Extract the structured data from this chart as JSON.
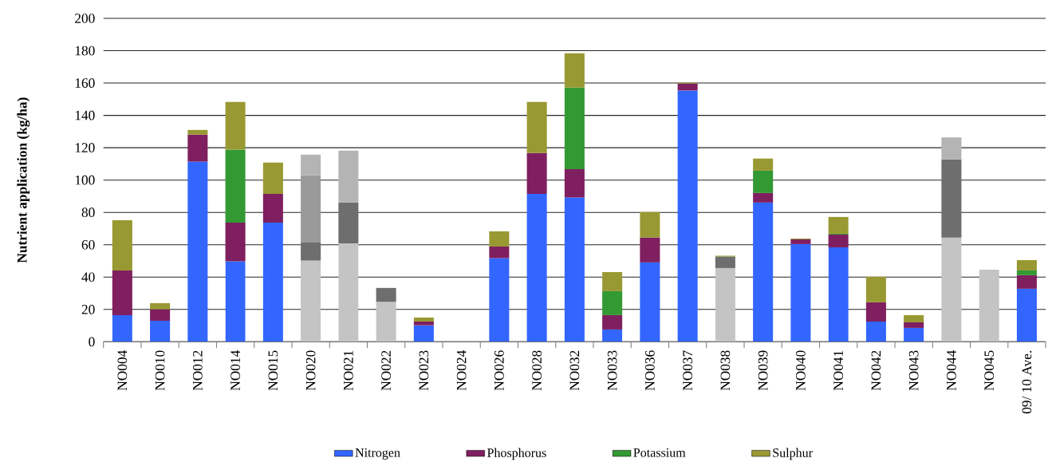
{
  "chart_data": {
    "type": "bar",
    "stacked": true,
    "ylabel": "Nutrient application (kg/ha)",
    "categories": [
      "NO004",
      "NO010",
      "NO012",
      "NO014",
      "NO015",
      "NO020",
      "NO021",
      "NO022",
      "NO023",
      "NO024",
      "NO026",
      "NO028",
      "NO032",
      "NO033",
      "NO036",
      "NO037",
      "NO038",
      "NO039",
      "NO040",
      "NO041",
      "NO042",
      "NO043",
      "NO044",
      "NO045",
      "09/ 10 Ave."
    ],
    "ylim": [
      0,
      200
    ],
    "yticks": [
      0,
      20,
      40,
      60,
      80,
      100,
      120,
      140,
      160,
      180,
      200
    ],
    "grid": "y",
    "legend": "bottom",
    "series": [
      {
        "name": "Nitrogen",
        "color": "#3366ff",
        "values": [
          16.5,
          13.0,
          111.4,
          49.7,
          73.7,
          50.2,
          60.9,
          24.7,
          10.2,
          null,
          51.7,
          91.5,
          89.2,
          7.6,
          49.1,
          155.4,
          45.6,
          86.1,
          60.4,
          58.4,
          12.5,
          8.6,
          64.4,
          44.6,
          32.8
        ],
        "colors": [
          "#3366ff",
          "#3366ff",
          "#3366ff",
          "#3366ff",
          "#3366ff",
          "#c4c4c4",
          "#c4c4c4",
          "#c4c4c4",
          "#3366ff",
          "#3366ff",
          "#3366ff",
          "#3366ff",
          "#3366ff",
          "#3366ff",
          "#3366ff",
          "#3366ff",
          "#c4c4c4",
          "#3366ff",
          "#3366ff",
          "#3366ff",
          "#3366ff",
          "#3366ff",
          "#c4c4c4",
          "#c4c4c4",
          "#3366ff"
        ]
      },
      {
        "name": "Phosphorus",
        "color": "#7f1f5f",
        "values": [
          27.6,
          7.1,
          16.7,
          24.0,
          17.8,
          11.5,
          25.2,
          8.6,
          2.3,
          null,
          7.2,
          25.2,
          17.6,
          8.9,
          15.4,
          4.3,
          7.1,
          5.9,
          3.0,
          7.9,
          11.9,
          3.4,
          48.4,
          null,
          8.4
        ],
        "colors": [
          "#7f1f5f",
          "#7f1f5f",
          "#7f1f5f",
          "#7f1f5f",
          "#7f1f5f",
          "#6e6e6e",
          "#6e6e6e",
          "#6e6e6e",
          "#7f1f5f",
          "#7f1f5f",
          "#7f1f5f",
          "#7f1f5f",
          "#7f1f5f",
          "#7f1f5f",
          "#7f1f5f",
          "#7f1f5f",
          "#6e6e6e",
          "#7f1f5f",
          "#7f1f5f",
          "#7f1f5f",
          "#7f1f5f",
          "#7f1f5f",
          "#6e6e6e",
          "#6e6e6e",
          "#7f1f5f"
        ]
      },
      {
        "name": "Potassium",
        "color": "#339933",
        "values": [
          null,
          null,
          null,
          45.1,
          null,
          41.2,
          null,
          null,
          null,
          null,
          null,
          null,
          50.4,
          14.8,
          null,
          null,
          null,
          13.8,
          null,
          0.5,
          null,
          null,
          null,
          null,
          2.9
        ],
        "colors": [
          "#339933",
          "#339933",
          "#339933",
          "#339933",
          "#339933",
          "#9a9a9a",
          "#9a9a9a",
          "#9a9a9a",
          "#339933",
          "#339933",
          "#339933",
          "#339933",
          "#339933",
          "#339933",
          "#339933",
          "#339933",
          "#9a9a9a",
          "#339933",
          "#339933",
          "#339933",
          "#339933",
          "#339933",
          "#9a9a9a",
          "#9a9a9a",
          "#339933"
        ]
      },
      {
        "name": "Sulphur",
        "color": "#999933",
        "values": [
          31.1,
          3.8,
          2.9,
          29.5,
          19.3,
          12.8,
          32.1,
          null,
          2.5,
          null,
          9.4,
          31.6,
          21.2,
          11.8,
          15.7,
          0.5,
          0.5,
          7.5,
          0.5,
          10.4,
          15.8,
          4.5,
          13.6,
          null,
          6.4
        ],
        "colors": [
          "#999933",
          "#999933",
          "#999933",
          "#999933",
          "#999933",
          "#b4b4b4",
          "#b4b4b4",
          "#b4b4b4",
          "#999933",
          "#999933",
          "#999933",
          "#999933",
          "#999933",
          "#999933",
          "#999933",
          "#999933",
          "#999933",
          "#999933",
          "#999933",
          "#999933",
          "#999933",
          "#999933",
          "#b4b4b4",
          "#b4b4b4",
          "#999933"
        ]
      }
    ]
  }
}
